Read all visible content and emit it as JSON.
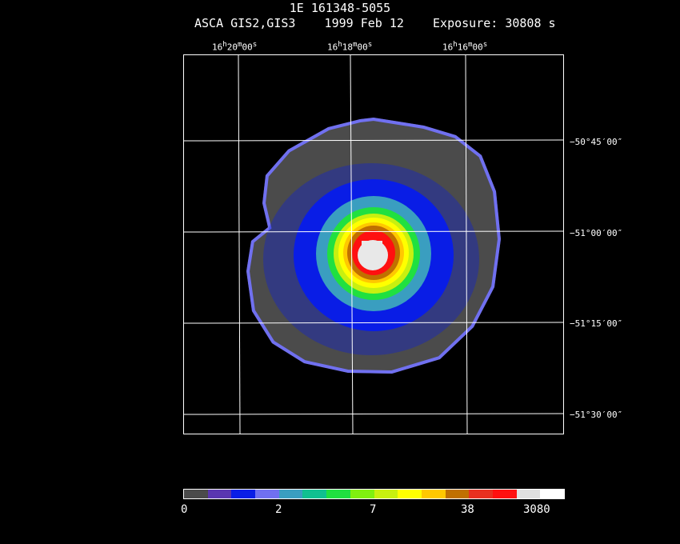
{
  "header": {
    "title": "1E 161348-5055",
    "subtitle": "ASCA GIS2,GIS3    1999 Feb 12    Exposure: 30808 s"
  },
  "axes": {
    "ra_labels": [
      {
        "h": "16",
        "m": "20",
        "s": "00"
      },
      {
        "h": "16",
        "m": "18",
        "s": "00"
      },
      {
        "h": "16",
        "m": "16",
        "s": "00"
      }
    ],
    "dec_labels": [
      "−50°45′00″",
      "−51°00′00″",
      "−51°15′00″",
      "−51°30′00″"
    ]
  },
  "colorbar": {
    "colors": [
      "#4b4b4b",
      "#5a36b0",
      "#0a1ee6",
      "#7070f0",
      "#3a9ec0",
      "#10c090",
      "#20e040",
      "#80f010",
      "#c8f010",
      "#ffff00",
      "#ffc800",
      "#c07000",
      "#e83020",
      "#ff1010",
      "#e0e0e0",
      "#ffffff"
    ],
    "ticks": [
      "0",
      "2",
      "7",
      "38",
      "3080"
    ]
  },
  "image": {
    "colors": {
      "background": "#4b4b4b",
      "edge": "#7070f0",
      "low": "#0a1ee6",
      "mid_low": "#3a9ec0",
      "mid": "#20e040",
      "yellow": "#ffff00",
      "orange": "#c07000",
      "red": "#ff1010",
      "peak": "#e8e8e8"
    }
  }
}
